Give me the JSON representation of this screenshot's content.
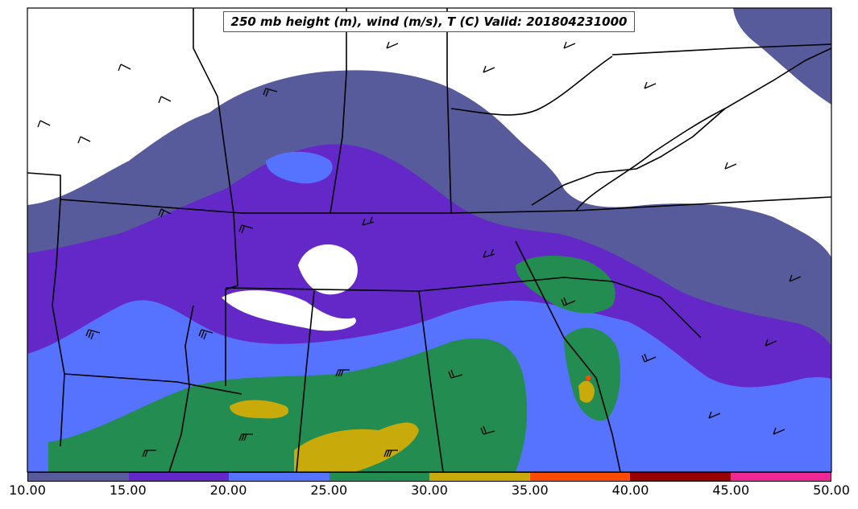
{
  "title": "250 mb height (m), wind (m/s), T (C) Valid: 201804231000",
  "colorbar": {
    "ticks": [
      "10.00",
      "15.00",
      "20.00",
      "25.00",
      "30.00",
      "35.00",
      "40.00",
      "45.00",
      "50.00"
    ],
    "colors": [
      "#575a9b",
      "#6428c8",
      "#5573ff",
      "#238c50",
      "#c8aa0a",
      "#ff4b00",
      "#960000",
      "#f02896"
    ]
  },
  "palette": {
    "land": "#ffffff",
    "band_10_15": "#575a9b",
    "band_15_20": "#6428c8",
    "band_20_25": "#5573ff",
    "band_25_30": "#238c50",
    "band_30_35": "#c8aa0a",
    "band_35_40": "#ff4b00",
    "boundary": "#000000"
  }
}
